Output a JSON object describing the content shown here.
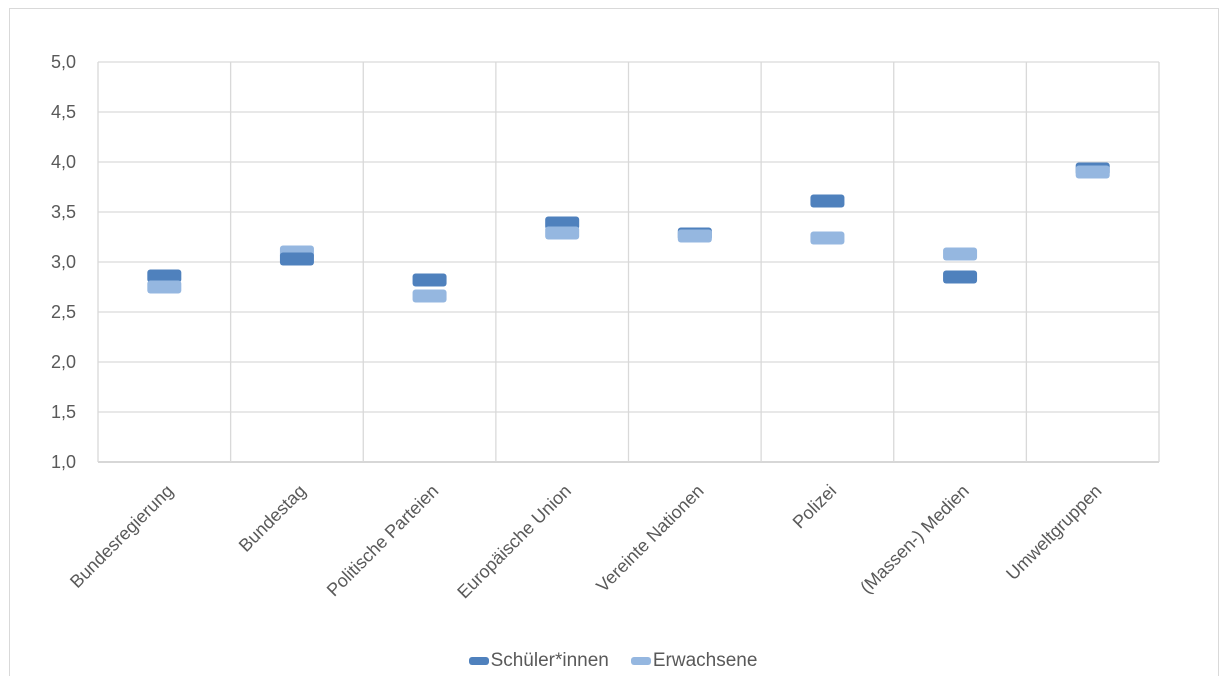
{
  "chart_data": {
    "type": "scatter",
    "marker": "horizontal-bar",
    "categories": [
      "Bundesregierung",
      "Bundestag",
      "Politische Parteien",
      "Europäische Union",
      "Vereinte Nationen",
      "Polizei",
      "(Massen-) Medien",
      "Umweltgruppen"
    ],
    "series": [
      {
        "name": "Schüler*innen",
        "color": "#4f81bd",
        "values": [
          2.86,
          3.03,
          2.82,
          3.39,
          3.28,
          3.61,
          2.85,
          3.93
        ]
      },
      {
        "name": "Erwachsene",
        "color": "#95b7e0",
        "values": [
          2.75,
          3.1,
          2.66,
          3.29,
          3.26,
          3.24,
          3.08,
          3.9
        ]
      }
    ],
    "ylim": [
      1.0,
      5.0
    ],
    "yticks": [
      "1,0",
      "1,5",
      "2,0",
      "2,5",
      "3,0",
      "3,5",
      "4,0",
      "4,5",
      "5,0"
    ],
    "grid": true,
    "legend_position": "bottom"
  }
}
